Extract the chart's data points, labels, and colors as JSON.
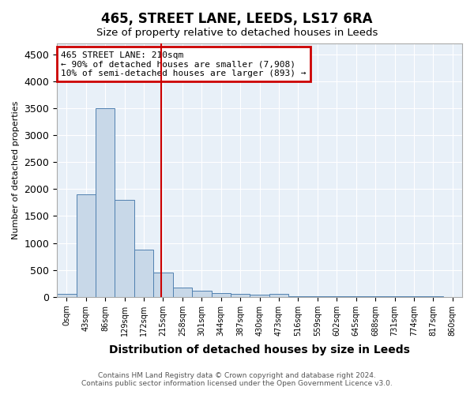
{
  "title": "465, STREET LANE, LEEDS, LS17 6RA",
  "subtitle": "Size of property relative to detached houses in Leeds",
  "xlabel": "Distribution of detached houses by size in Leeds",
  "ylabel": "Number of detached properties",
  "footer_line1": "Contains HM Land Registry data © Crown copyright and database right 2024.",
  "footer_line2": "Contains public sector information licensed under the Open Government Licence v3.0.",
  "annotation_line1": "465 STREET LANE: 210sqm",
  "annotation_line2": "← 90% of detached houses are smaller (7,908)",
  "annotation_line3": "10% of semi-detached houses are larger (893) →",
  "bar_color": "#c8d8e8",
  "bar_edge_color": "#5080b0",
  "redline_color": "#cc0000",
  "annotation_box_color": "#cc0000",
  "bins": [
    "0sqm",
    "43sqm",
    "86sqm",
    "129sqm",
    "172sqm",
    "215sqm",
    "258sqm",
    "301sqm",
    "344sqm",
    "387sqm",
    "430sqm",
    "473sqm",
    "516sqm",
    "559sqm",
    "602sqm",
    "645sqm",
    "688sqm",
    "731sqm",
    "774sqm",
    "817sqm",
    "860sqm"
  ],
  "values": [
    50,
    1900,
    3500,
    1800,
    870,
    450,
    175,
    110,
    75,
    50,
    40,
    50,
    5,
    5,
    5,
    5,
    5,
    5,
    5,
    5,
    0
  ],
  "ylim": [
    0,
    4700
  ],
  "yticks": [
    0,
    500,
    1000,
    1500,
    2000,
    2500,
    3000,
    3500,
    4000,
    4500
  ],
  "plot_bg_color": "#e8f0f8"
}
